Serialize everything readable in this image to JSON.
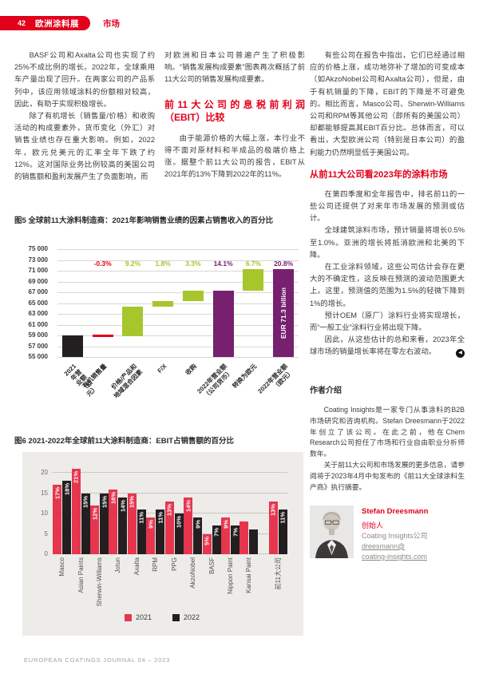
{
  "header": {
    "page_number": "42",
    "section_badge": "欧洲涂料展",
    "section_label": "市场"
  },
  "columns": {
    "col1": [
      "BASF公司和Axalta公司也实现了约25%不成比例的增长。2022年，全球乘用车产量出现了回升。在两家公司的产品系列中，该应用领域涂料的份额相对较高，因此，有助于实现积极增长。",
      "除了有机增长（销售量/价格）和收购活动的构成要素外，货币变化（外汇）对销售业绩也存在重大影响。例如，2022年，欧元兑美元的汇率全年下跌了约12%。这对国际业务比例较高的美国公司的销售额和盈利发展产生了负面影响，而"
    ],
    "col2_intro": "对欧洲和日本公司普遍产生了积极影响。“销售发展构成要素”图表再次概括了前11大公司的销售发展构成要素。",
    "col2_heading": "前11大公司的息税前利润（EBIT）比较",
    "col2_body": "由于能源价格的大幅上涨，本行业不得不面对原材料和半成品的极端价格上涨。据整个前11大公司的报告，EBIT从2021年的13%下降到2022年的11%。",
    "col3_intro": "有些公司在报告中指出，它们已经通过相应的价格上涨，成功地弥补了增加的可变成本（如AkzoNobel公司和Axalta公司），但是，由于有机销量的下降，EBIT的下降是不可避免的。相比而言，Masco公司、Sherwin-Williams公司和RPM等其他公司（即所有的美国公司）却都能够提高其EBIT百分比。总体而言，可以看出，大型欧洲公司（特别是日本公司）的盈利能力仍然明显低于美国公司。",
    "col3_heading": "从前11大公司看2023年的涂料市场",
    "col3_paragraphs": [
      "在第四季度和全年报告中，排名前11的一些公司还提供了对来年市场发展的预测或估计。",
      "全球建筑涂料市场，预计销量将增长0.5%至1.0%。亚洲的增长将抵消欧洲和北美的下降。",
      "在工业涂料领域，这些公司估计会存在更大的不确定性，这反映在预测的波动范围更大上。这里，预测值的范围为1.5%的轻微下降到1%的增长。",
      "预计OEM（原厂）涂料行业将实现增长，而“一般工业”涂料行业将出现下降。",
      "因此，从这些估计的总和来看，2023年全球市场的销量增长率将在零左右波动。"
    ]
  },
  "figure5": {
    "caption": "图5 全球前11大涂料制造商：2021年影响销售业绩的因素占销售收入的百分比"
  },
  "figure6": {
    "caption": "图6 2021-2022年全球前11大涂料制造商：EBIT占销售额的百分比"
  },
  "chart_data": [
    {
      "type": "waterfall",
      "title": "图5 全球前11大涂料制造商：2021年影响销售业绩的因素占销售收入的百分比",
      "ylim": [
        55000,
        75000
      ],
      "yticks": [
        "75 000",
        "73 000",
        "71 000",
        "69 000",
        "67 000",
        "65 000",
        "63 000",
        "61 000",
        "59 000",
        "57 000",
        "55 000"
      ],
      "colors": {
        "black": "#231f20",
        "red": "#e2001a",
        "green": "#a6c62c",
        "purple": "#76206f"
      },
      "bars": [
        {
          "category": "2021年营业额\n（欧元）",
          "start": 55000,
          "end": 59000,
          "color": "black",
          "pct": ""
        },
        {
          "category": "有机销售量",
          "start": 59000,
          "end": 58850,
          "color": "red",
          "pct": "-0.3%",
          "thin": true
        },
        {
          "category": "价格/产品和\n地域混合因素",
          "start": 58850,
          "end": 64300,
          "color": "green",
          "pct": "9.2%"
        },
        {
          "category": "F/X",
          "start": 64300,
          "end": 65350,
          "color": "green",
          "pct": "1.8%"
        },
        {
          "category": "收购",
          "start": 65350,
          "end": 67300,
          "color": "green",
          "pct": "3.3%"
        },
        {
          "category": "2022年营业额\n（公司货币）",
          "start": 55000,
          "end": 67300,
          "color": "purple",
          "pct": "14.1%"
        },
        {
          "category": "转换为欧元",
          "start": 67300,
          "end": 71300,
          "color": "green",
          "pct": "6.7%"
        },
        {
          "category": "2022年营业额\n（欧元）",
          "start": 55000,
          "end": 71300,
          "color": "purple",
          "pct": "20.8%",
          "inner_label": "EUR 71.3 billion"
        }
      ]
    },
    {
      "type": "bar",
      "title": "图6 2021-2022年全球前11大涂料制造商：EBIT占销售额的百分比",
      "categories": [
        "Masco",
        "Asian Paints",
        "Sherwin-Williams",
        "Jotun",
        "Axalta",
        "RPM",
        "PPG",
        "AkzoNobel",
        "BASF",
        "Nippon Paint",
        "Kansai Paint",
        "前11大公司"
      ],
      "separator_before_index": 11,
      "series": [
        {
          "name": "2021",
          "color": "#e5364e",
          "values": [
            17,
            21,
            12,
            16,
            15,
            9,
            13,
            14,
            5,
            9,
            8,
            13
          ],
          "labels": [
            "17%",
            "21%",
            "12%",
            "16%",
            "15%",
            "9%",
            "13%",
            "14%",
            "5%",
            "9%",
            "",
            "13%"
          ]
        },
        {
          "name": "2022",
          "color": "#231f20",
          "values": [
            18,
            15,
            15,
            14,
            11,
            11,
            10,
            9,
            7,
            7,
            6,
            11
          ],
          "labels": [
            "18%",
            "15%",
            "15%",
            "14%",
            "11%",
            "11%",
            "10%",
            "9%",
            "7%",
            "7%",
            "",
            "11%"
          ]
        }
      ],
      "ylim": [
        0,
        22
      ],
      "yticks": [
        0,
        5,
        10,
        15,
        20
      ],
      "legend": [
        "2021",
        "2022"
      ],
      "legend_position": "bottom"
    }
  ],
  "author": {
    "heading": "作者介绍",
    "paragraphs": [
      "Coating Insights是一家专门从事涂料的B2B市场研究和咨询机构。Stefan Dreesmann于2022年创立了该公司。在此之前，他在Chem Research公司担任了市场和行业自由职业分析师数年。",
      "关于前11大公司和市场发展的更多信息，请参阅将于2023年4月中旬发布的《前11大全球涂料生产商》执行摘要。"
    ],
    "name": "Stefan Dreesmann",
    "role": "创始人",
    "company": "Coating Insights公司",
    "email_line1": "dreesmann@",
    "email_line2": "coating-insights.com"
  },
  "icons": {
    "end_of_article": "◀"
  },
  "footer": {
    "text": "EUROPEAN COATINGS JOURNAL 04 – 2023"
  },
  "colors": {
    "brand_red": "#e2001a",
    "bar_red_2021": "#e5364e",
    "chart_black": "#231f20",
    "chart_green": "#a6c62c",
    "chart_purple": "#76206f",
    "panel_background": "#edece8"
  }
}
